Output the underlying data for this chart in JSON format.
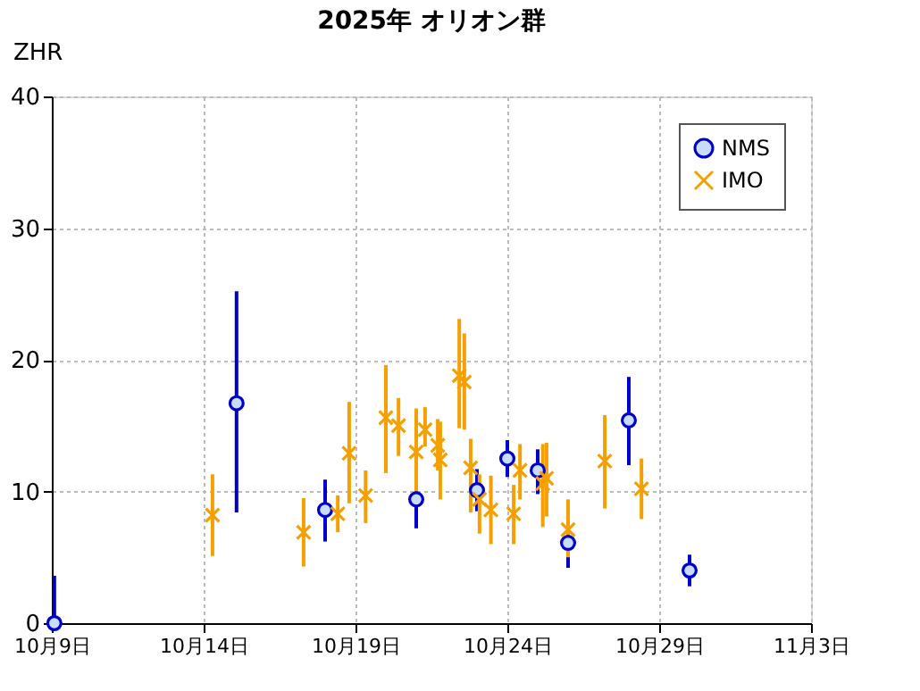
{
  "chart_data": {
    "type": "scatter",
    "title": "2025年 オリオン群",
    "ylabel": "ZHR",
    "xlim": [
      "2025-10-09",
      "2025-11-03"
    ],
    "xticks": [
      {
        "value": "2025-10-09",
        "label": "10月9日"
      },
      {
        "value": "2025-10-14",
        "label": "10月14日"
      },
      {
        "value": "2025-10-19",
        "label": "10月19日"
      },
      {
        "value": "2025-10-24",
        "label": "10月24日"
      },
      {
        "value": "2025-10-29",
        "label": "10月29日"
      },
      {
        "value": "2025-11-03",
        "label": "11月3日"
      }
    ],
    "ylim": [
      0,
      40
    ],
    "yticks": [
      0,
      10,
      20,
      30,
      40
    ],
    "grid": true,
    "legend": "top right",
    "series": [
      {
        "name": "NMS",
        "color": "#0000cc",
        "marker": "circle",
        "x": [
          "2025-10-09T02:00",
          "2025-10-15T02:00",
          "2025-10-18T00:00",
          "2025-10-21T00:00",
          "2025-10-23T00:00",
          "2025-10-24T00:00",
          "2025-10-25T00:00",
          "2025-10-26T00:00",
          "2025-10-28T00:00",
          "2025-10-30T00:00"
        ],
        "values": [
          0,
          16.7,
          8.6,
          9.4,
          10.1,
          12.5,
          11.6,
          6.1,
          15.4,
          4.0
        ],
        "errors": [
          [
            0,
            3.6
          ],
          [
            8.4,
            25.2
          ],
          [
            6.2,
            10.9
          ],
          [
            7.2,
            11.7
          ],
          [
            8.5,
            11.7
          ],
          [
            11.1,
            13.9
          ],
          [
            9.8,
            13.2
          ],
          [
            4.2,
            7.9
          ],
          [
            12.0,
            18.7
          ],
          [
            2.8,
            5.2
          ]
        ]
      },
      {
        "name": "IMO",
        "color": "#f5a000",
        "marker": "cross",
        "x": [
          "2025-10-14T07:00",
          "2025-10-17T07:00",
          "2025-10-18T10:00",
          "2025-10-18T19:00",
          "2025-10-19T08:00",
          "2025-10-20T00:00",
          "2025-10-20T10:00",
          "2025-10-21T00:00",
          "2025-10-21T07:00",
          "2025-10-21T17:00",
          "2025-10-21T19:00",
          "2025-10-22T10:00",
          "2025-10-22T14:00",
          "2025-10-22T19:00",
          "2025-10-23T02:00",
          "2025-10-23T11:00",
          "2025-10-24T05:00",
          "2025-10-24T10:00",
          "2025-10-25T04:00",
          "2025-10-25T07:00",
          "2025-10-26T00:00",
          "2025-10-27T05:00",
          "2025-10-28T10:00"
        ],
        "values": [
          8.2,
          6.9,
          8.3,
          12.9,
          9.7,
          15.6,
          15.0,
          13.0,
          14.7,
          13.5,
          12.4,
          18.8,
          18.3,
          11.8,
          9.4,
          8.6,
          8.3,
          11.6,
          10.6,
          11.0,
          7.1,
          12.3,
          10.2
        ],
        "errors": [
          [
            5.1,
            11.3
          ],
          [
            4.3,
            9.5
          ],
          [
            6.9,
            9.7
          ],
          [
            9.1,
            16.8
          ],
          [
            7.6,
            11.6
          ],
          [
            11.4,
            19.6
          ],
          [
            12.7,
            17.1
          ],
          [
            10.0,
            16.3
          ],
          [
            13.4,
            16.4
          ],
          [
            11.6,
            15.5
          ],
          [
            9.4,
            15.3
          ],
          [
            14.8,
            23.1
          ],
          [
            14.7,
            22.0
          ],
          [
            8.4,
            14.0
          ],
          [
            6.8,
            11.3
          ],
          [
            6.0,
            11.2
          ],
          [
            6.0,
            10.5
          ],
          [
            9.4,
            13.6
          ],
          [
            7.3,
            13.6
          ],
          [
            8.1,
            13.7
          ],
          [
            5.0,
            9.4
          ],
          [
            8.7,
            15.8
          ],
          [
            7.9,
            12.5
          ]
        ]
      }
    ]
  }
}
